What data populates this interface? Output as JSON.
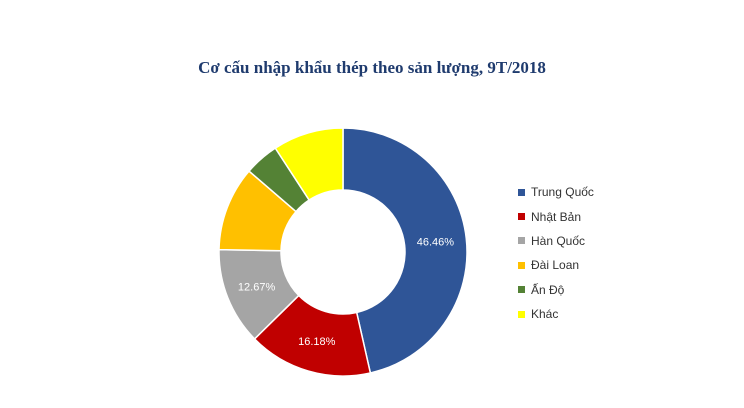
{
  "chart_data": {
    "type": "pie",
    "title": "Cơ cấu nhập khẩu thép theo sản lượng, 9T/2018",
    "labels": [
      "Trung Quốc",
      "Nhật Bản",
      "Hàn Quốc",
      "Đài Loan",
      "Ấn Độ",
      "Khác"
    ],
    "values": [
      46.46,
      16.18,
      12.67,
      11.0,
      4.5,
      9.19
    ],
    "data_labels": [
      "46.46%",
      "16.18%",
      "12.67%",
      "",
      "",
      ""
    ],
    "colors": [
      "#2f5597",
      "#c00000",
      "#a5a5a5",
      "#ffc000",
      "#548235",
      "#ffff00"
    ],
    "legend_position": "right",
    "donut": true
  }
}
